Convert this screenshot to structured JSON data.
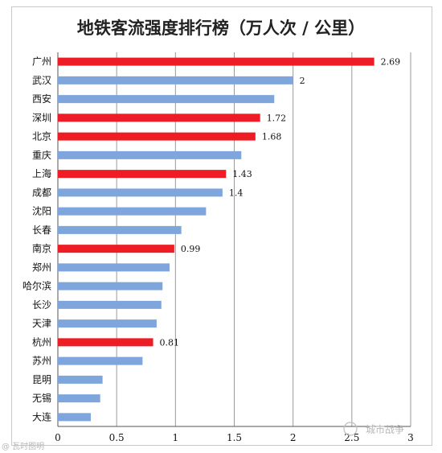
{
  "watermarks": {
    "source": "城市战争",
    "corner": "@ 瓦时图明"
  },
  "chart_data": {
    "type": "bar",
    "orientation": "horizontal",
    "title": "地铁客流强度排行榜（万人次 / 公里）",
    "xlabel": "",
    "ylabel": "",
    "xlim": [
      0,
      3
    ],
    "xticks": [
      0,
      0.5,
      1,
      1.5,
      2,
      2.5,
      3
    ],
    "xtick_labels": [
      "0",
      "0.5",
      "1",
      "1.5",
      "2",
      "2.5",
      "3"
    ],
    "grid": "vertical",
    "legend": "none",
    "colors": {
      "highlight": "#ee1c25",
      "normal": "#7ea6dc",
      "grid": "#9a9a9a"
    },
    "categories": [
      "广州",
      "武汉",
      "西安",
      "深圳",
      "北京",
      "重庆",
      "上海",
      "成都",
      "沈阳",
      "长春",
      "南京",
      "郑州",
      "哈尔滨",
      "长沙",
      "天津",
      "杭州",
      "苏州",
      "昆明",
      "无锡",
      "大连"
    ],
    "values": [
      2.69,
      2.0,
      1.84,
      1.72,
      1.68,
      1.56,
      1.43,
      1.4,
      1.26,
      1.05,
      0.99,
      0.95,
      0.89,
      0.88,
      0.84,
      0.81,
      0.72,
      0.38,
      0.36,
      0.28
    ],
    "highlighted": [
      true,
      false,
      false,
      true,
      true,
      false,
      true,
      false,
      false,
      false,
      true,
      false,
      false,
      false,
      false,
      true,
      false,
      false,
      false,
      false
    ],
    "data_labels": [
      "2.69",
      "2",
      "",
      "1.72",
      "1.68",
      "",
      "1.43",
      "1.4",
      "",
      "",
      "0.99",
      "",
      "",
      "",
      "",
      "0.81",
      "",
      "",
      "",
      ""
    ]
  }
}
